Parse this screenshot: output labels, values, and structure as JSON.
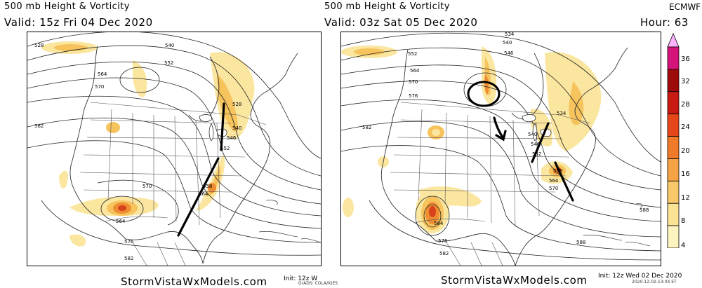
{
  "left_panel": {
    "title": "500 mb Height & Vorticity",
    "valid": "Valid: 15z Fri 04 Dec 2020",
    "footer_site": "StormVistaWxModels.com",
    "footer_init": "Init: 12z W",
    "footer_tiny": "GrADS: COLA/IGES",
    "contour_labels": [
      "528",
      "540",
      "552",
      "564",
      "570",
      "582",
      "528",
      "540",
      "546",
      "552",
      "558",
      "564",
      "570",
      "564",
      "576",
      "582"
    ]
  },
  "right_panel": {
    "title": "500 mb Height & Vorticity",
    "valid": "Valid: 03z Sat 05 Dec 2020",
    "model": "ECMWF",
    "hour": "Hour: 63",
    "footer_site": "StormVistaWxModels.com",
    "footer_init": "Init: 12z Wed 02 Dec 2020",
    "footer_tiny": "2020-12-02-13:04 ET",
    "contour_labels": [
      "534",
      "540",
      "546",
      "552",
      "564",
      "570",
      "576",
      "582",
      "534",
      "540",
      "546",
      "552",
      "558",
      "564",
      "570",
      "564",
      "576",
      "582",
      "588",
      "588"
    ]
  },
  "colorbar": {
    "ticks": [
      "36",
      "32",
      "28",
      "24",
      "20",
      "16",
      "12",
      "8",
      "4"
    ],
    "colors": [
      "#ffb3ff",
      "#d4147a",
      "#9e0b0b",
      "#c71a10",
      "#e6461a",
      "#f07a2a",
      "#f5a445",
      "#f8c86a",
      "#fbe394",
      "#fdf3bf"
    ]
  },
  "colors": {
    "vort_light": "#fbe6a0",
    "vort_mid": "#f6c35c",
    "vort_orange": "#ef8d33",
    "vort_red": "#d7411c",
    "annotation": "#000000"
  }
}
